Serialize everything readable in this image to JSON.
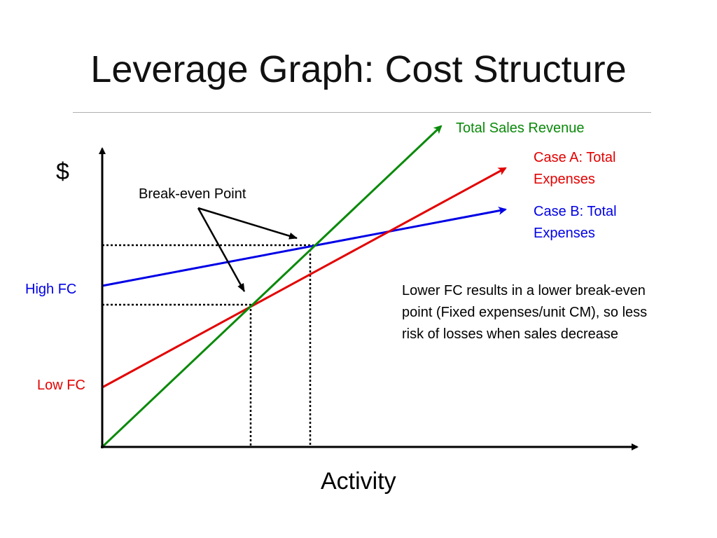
{
  "slide": {
    "title": "Leverage Graph: Cost Structure",
    "note": "Lower FC results in a lower break-even point (Fixed expenses/unit CM), so less risk of losses when sales decrease"
  },
  "colors": {
    "revenue": "#0a8a0a",
    "case_a": "#e30000",
    "case_b": "#0000e6",
    "axis": "#000000"
  },
  "chart_data": {
    "type": "line",
    "ylabel": "$",
    "xlabel": "Activity",
    "y_tick_labels": [
      "High FC",
      "Low FC"
    ],
    "series": [
      {
        "name": "Total Sales Revenue",
        "color": "#0a8a0a"
      },
      {
        "name": "Case A: Total Expenses",
        "color": "#e30000"
      },
      {
        "name": "Case B: Total Expenses",
        "color": "#0000e6"
      }
    ],
    "annotation": "Break-even Point"
  }
}
